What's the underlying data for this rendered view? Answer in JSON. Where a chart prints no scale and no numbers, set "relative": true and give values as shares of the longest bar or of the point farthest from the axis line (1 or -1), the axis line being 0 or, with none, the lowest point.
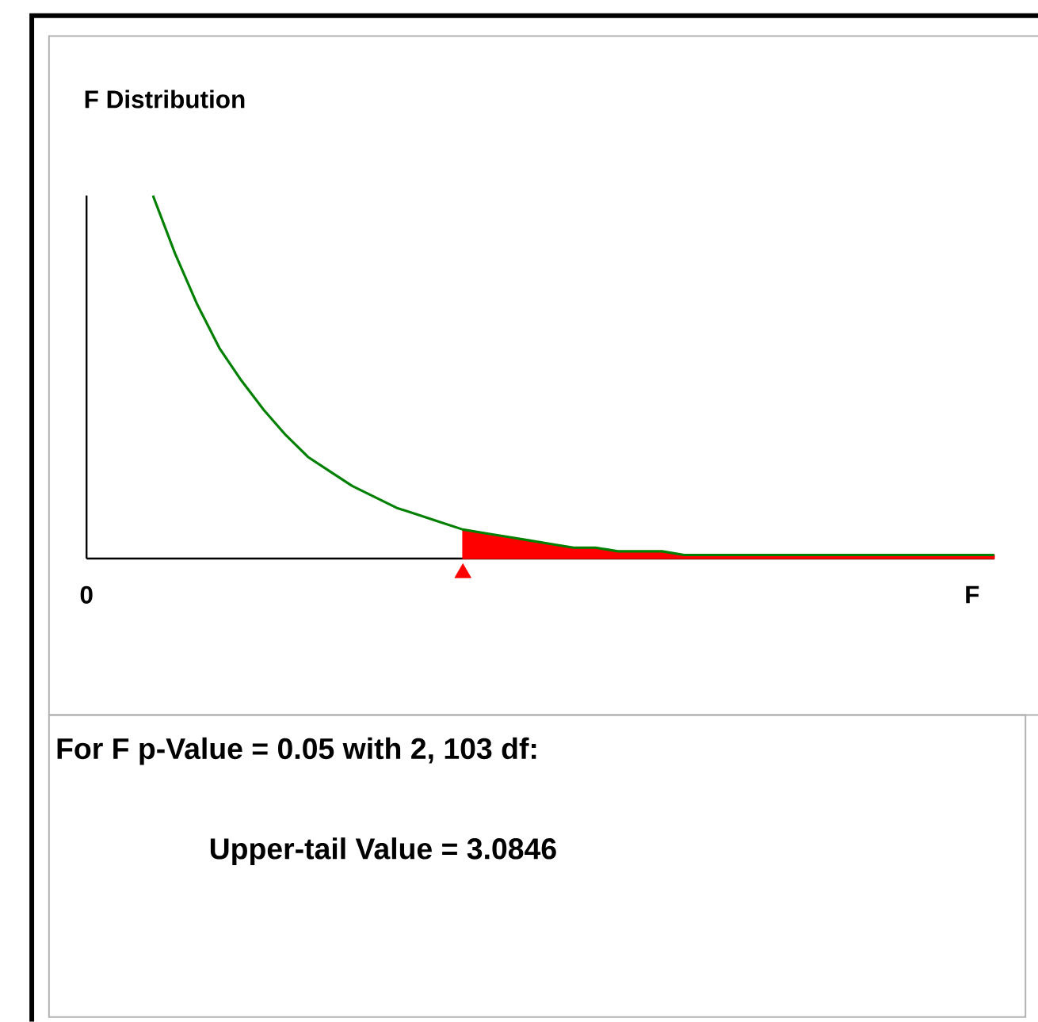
{
  "chart_data": {
    "type": "line",
    "title": "F Distribution",
    "relative": true,
    "categories": [
      "0",
      null,
      null,
      null,
      null,
      null,
      null,
      null,
      null,
      null,
      null,
      null,
      null,
      null,
      null,
      null,
      null,
      null,
      null,
      null,
      null,
      null,
      null,
      null,
      null,
      null,
      null,
      null,
      null,
      null,
      null,
      null,
      null,
      null,
      null,
      null,
      null,
      null,
      null,
      null,
      "F",
      null
    ],
    "series": [
      {
        "color": "#008000",
        "values": [
          null,
          null,
          null,
          1.0,
          0.84,
          0.7,
          0.58,
          0.49,
          0.41,
          0.34,
          0.28,
          0.24,
          0.2,
          0.17,
          0.14,
          0.12,
          0.1,
          0.08,
          0.07,
          0.06,
          0.05,
          0.04,
          0.03,
          0.03,
          0.02,
          0.02,
          0.02,
          0.01,
          0.01,
          0.01,
          0.01,
          0.01,
          0.01,
          0.01,
          0.01,
          0.01,
          0.01,
          0.01,
          0.01,
          0.01,
          0.01,
          0.01
        ]
      },
      {
        "type": "area",
        "color": "#ff0000",
        "values": [
          null,
          null,
          null,
          null,
          null,
          null,
          null,
          null,
          null,
          null,
          null,
          null,
          null,
          null,
          null,
          null,
          null,
          0.08,
          0.07,
          0.06,
          0.05,
          0.04,
          0.03,
          0.03,
          0.02,
          0.02,
          0.02,
          0.01,
          0.01,
          0.01,
          0.01,
          0.01,
          0.01,
          0.01,
          0.01,
          0.01,
          0.01,
          0.01,
          0.01,
          0.01,
          0.01,
          0.01
        ]
      },
      {
        "type": "scatter",
        "marker": "triangle",
        "color": "#ff0000",
        "values": [
          null,
          null,
          null,
          null,
          null,
          null,
          null,
          null,
          null,
          null,
          null,
          null,
          null,
          null,
          null,
          null,
          null,
          -0.04,
          null,
          null,
          null,
          null,
          null,
          null,
          null,
          null,
          null,
          null,
          null,
          null,
          null,
          null,
          null,
          null,
          null,
          null,
          null,
          null,
          null,
          null,
          null,
          null
        ]
      }
    ],
    "annotations": [
      "For F p-Value = 0.05  with 2, 103 df:",
      "Upper-tail  Value = 3.0846"
    ]
  }
}
